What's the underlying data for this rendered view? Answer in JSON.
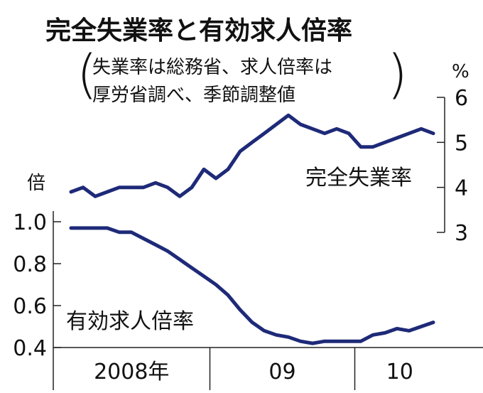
{
  "chart_data": {
    "type": "line",
    "title": "完全失業率と有効求人倍率",
    "subtitle": {
      "line1": "失業率は総務省、求人倍率は",
      "line2": "厚労省調べ、季節調整値"
    },
    "x": [
      "2008-01",
      "2008-02",
      "2008-03",
      "2008-04",
      "2008-05",
      "2008-06",
      "2008-07",
      "2008-08",
      "2008-09",
      "2008-10",
      "2008-11",
      "2008-12",
      "2009-01",
      "2009-02",
      "2009-03",
      "2009-04",
      "2009-05",
      "2009-06",
      "2009-07",
      "2009-08",
      "2009-09",
      "2009-10",
      "2009-11",
      "2009-12",
      "2010-01",
      "2010-02",
      "2010-03",
      "2010-04",
      "2010-05",
      "2010-06",
      "2010-07"
    ],
    "x_axis": {
      "categories": [
        {
          "label": "2008年",
          "start": "2008-01",
          "end": "2008-12"
        },
        {
          "label": "09",
          "start": "2009-01",
          "end": "2009-12"
        },
        {
          "label": "10",
          "start": "2010-01",
          "end": "2010-07"
        }
      ]
    },
    "left_axis": {
      "unit": "倍",
      "ylim": [
        0.4,
        1.0
      ],
      "ticks": [
        "1.0",
        "0.8",
        "0.6",
        "0.4"
      ]
    },
    "right_axis": {
      "unit": "%",
      "ylim": [
        3,
        6
      ],
      "ticks": [
        "6",
        "5",
        "4",
        "3"
      ]
    },
    "series": [
      {
        "name": "完全失業率",
        "axis": "right",
        "values": [
          3.9,
          4.0,
          3.8,
          3.9,
          4.0,
          4.0,
          4.0,
          4.1,
          4.0,
          3.8,
          4.0,
          4.4,
          4.2,
          4.4,
          4.8,
          5.0,
          5.2,
          5.4,
          5.6,
          5.4,
          5.3,
          5.2,
          5.3,
          5.2,
          4.9,
          4.9,
          5.0,
          5.1,
          5.2,
          5.3,
          5.2
        ]
      },
      {
        "name": "有効求人倍率",
        "axis": "left",
        "values": [
          0.97,
          0.97,
          0.97,
          0.97,
          0.95,
          0.95,
          0.92,
          0.89,
          0.86,
          0.82,
          0.78,
          0.74,
          0.7,
          0.65,
          0.58,
          0.52,
          0.48,
          0.46,
          0.45,
          0.43,
          0.42,
          0.43,
          0.43,
          0.43,
          0.43,
          0.46,
          0.47,
          0.49,
          0.48,
          0.5,
          0.52
        ]
      }
    ],
    "colors": {
      "line": "#1e2a78",
      "axis": "#222222",
      "background": "#ffffff"
    }
  }
}
